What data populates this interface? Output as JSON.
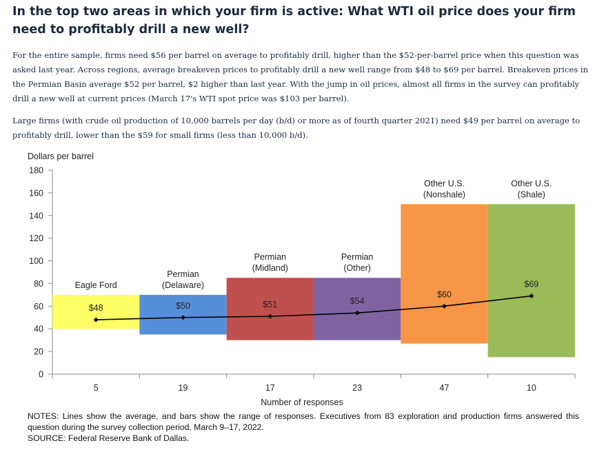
{
  "heading": "In the top two areas in which your firm is active: What WTI oil price does your firm need to profitably drill a new well?",
  "paragraphs": [
    "For the entire sample, firms need $56 per barrel on average to profitably drill, higher than the $52-per-barrel price when this question was asked last year. Across regions, average breakeven prices to profitably drill a new well range from $48 to $69 per barrel. Breakeven prices in the Permian Basin average $52 per barrel, $2 higher than last year. With the jump in oil prices, almost all firms in the survey can profitably drill a new well at current prices (March 17's WTI spot price was $103 per barrel).",
    "Large firms (with crude oil production of 10,000 barrels per day (b/d) or more as of fourth quarter 2021) need $49 per barrel on average to profitably drill, lower than the $59 for small firms (less than 10,000 b/d)."
  ],
  "notes": "NOTES: Lines show the average, and bars show the range of responses. Executives from 83 exploration and production firms answered this question during the survey collection period, March 9–17, 2022.",
  "source": "SOURCE: Federal Reserve Bank of Dallas.",
  "chart_data": {
    "type": "bar",
    "subtype": "floating range bars with average line",
    "ylabel": "Dollars per barrel",
    "xlabel": "Number of responses",
    "ylim": [
      0,
      180
    ],
    "yticks": [
      "0",
      "20",
      "40",
      "60",
      "80",
      "100",
      "120",
      "140",
      "160",
      "180"
    ],
    "categories": [
      {
        "name": [
          "Eagle Ford"
        ],
        "responses": "5",
        "low": 40,
        "high": 70,
        "average": 48,
        "avg_label": "$48",
        "color": "#ffff66"
      },
      {
        "name": [
          "Permian",
          "(Delaware)"
        ],
        "responses": "19",
        "low": 35,
        "high": 70,
        "average": 50,
        "avg_label": "$50",
        "color": "#568fd9"
      },
      {
        "name": [
          "Permian",
          "(Midland)"
        ],
        "responses": "17",
        "low": 30,
        "high": 85,
        "average": 51,
        "avg_label": "$51",
        "color": "#c0504d"
      },
      {
        "name": [
          "Permian",
          "(Other)"
        ],
        "responses": "23",
        "low": 30,
        "high": 85,
        "average": 54,
        "avg_label": "$54",
        "color": "#8064a2"
      },
      {
        "name": [
          "Other U.S.",
          "(Nonshale)"
        ],
        "responses": "47",
        "low": 27,
        "high": 150,
        "average": 60,
        "avg_label": "$60",
        "color": "#f79646"
      },
      {
        "name": [
          "Other U.S.",
          "(Shale)"
        ],
        "responses": "10",
        "low": 15,
        "high": 150,
        "average": 69,
        "avg_label": "$69",
        "color": "#9bbb59"
      }
    ]
  }
}
